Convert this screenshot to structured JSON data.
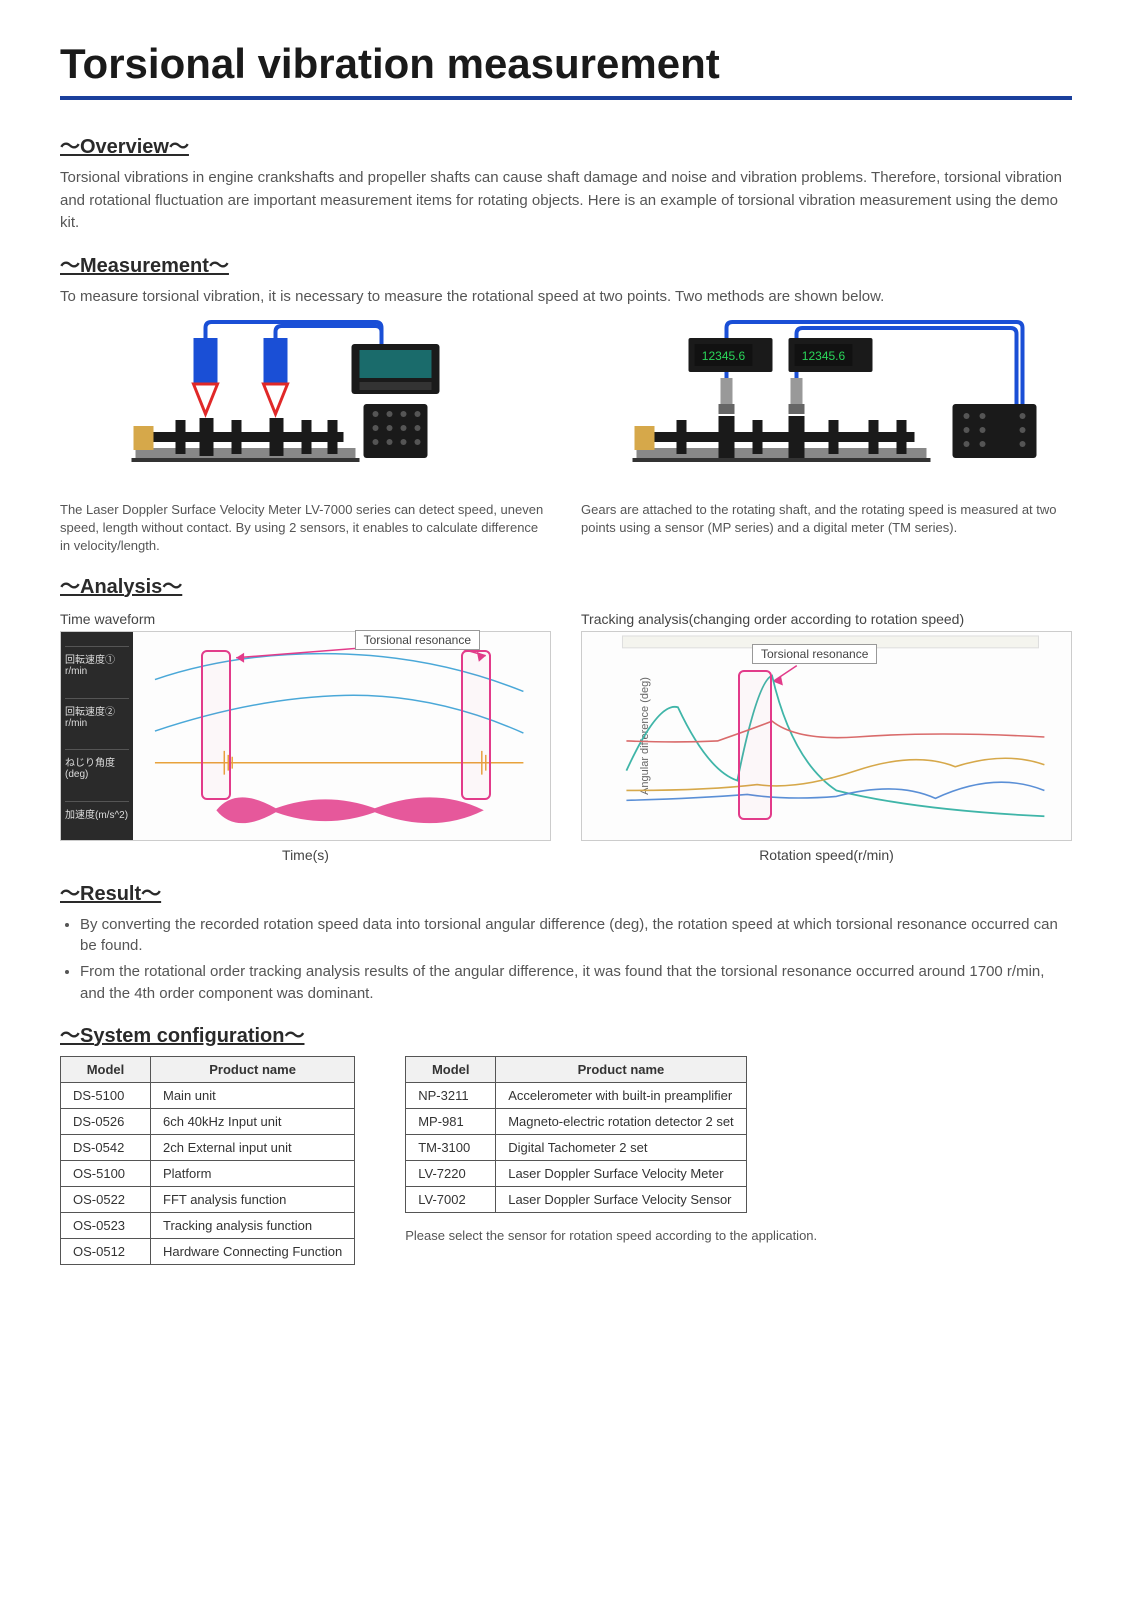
{
  "title": "Torsional vibration measurement",
  "sections": {
    "overview": {
      "heading": "～Overview～",
      "text": "Torsional vibrations in engine crankshafts and propeller shafts can cause shaft damage and noise and vibration problems. Therefore, torsional vibration and rotational fluctuation are important measurement items for rotating objects. Here is an example of torsional vibration measurement using the demo kit."
    },
    "measurement": {
      "heading": "～Measurement～",
      "text": "To measure torsional vibration, it is necessary to measure the rotational speed at two points. Two methods are shown below.",
      "method1_caption": "The Laser Doppler Surface Velocity Meter LV-7000 series can detect speed, uneven speed, length without contact. By using 2 sensors, it enables to calculate difference in velocity/length.",
      "method2_caption": "Gears are attached to the rotating shaft, and the rotating speed is measured at two points using a sensor (MP series) and a digital meter (TM series)."
    },
    "analysis": {
      "heading": "～Analysis～",
      "time_chart": {
        "label": "Time waveform",
        "callout": "Torsional resonance",
        "x_axis": "Time(s)",
        "sidepanel_labels": [
          "回転速度① r/min",
          "回転速度② r/min",
          "ねじり角度(deg)",
          "加速度(m/s^2)"
        ],
        "colors": {
          "line1": "#4aa8d8",
          "line2": "#4aa8d8",
          "torsion": "#e8a23c",
          "accel": "#e23b8a",
          "resonance_box": "#e23b8a"
        }
      },
      "tracking_chart": {
        "label": "Tracking analysis(changing order according to rotation speed)",
        "callout": "Torsional resonance",
        "x_axis": "Rotation speed(r/min)",
        "y_axis": "Angular difference (deg)",
        "series_colors": [
          "#3fb5a8",
          "#d96b6b",
          "#d6a84a",
          "#5a8fd6"
        ],
        "resonance_x_rpm": 1700,
        "x_range": [
          800,
          3000
        ]
      }
    },
    "result": {
      "heading": "～Result～",
      "bullets": [
        "By converting the recorded rotation speed data into torsional angular difference (deg), the rotation speed at which torsional resonance occurred can be found.",
        "From the rotational order tracking analysis results of the angular difference, it was found that the torsional resonance occurred around 1700 r/min, and the 4th order component was dominant."
      ]
    },
    "system": {
      "heading": "～System configuration～",
      "table1": {
        "headers": [
          "Model",
          "Product name"
        ],
        "rows": [
          [
            "DS-5100",
            "Main unit"
          ],
          [
            "DS-0526",
            "6ch 40kHz Input unit"
          ],
          [
            "DS-0542",
            "2ch External input unit"
          ],
          [
            "OS-5100",
            "Platform"
          ],
          [
            "OS-0522",
            "FFT analysis function"
          ],
          [
            "OS-0523",
            "Tracking analysis function"
          ],
          [
            "OS-0512",
            "Hardware Connecting Function"
          ]
        ]
      },
      "table2": {
        "headers": [
          "Model",
          "Product name"
        ],
        "rows": [
          [
            "NP-3211",
            "Accelerometer with built-in preamplifier"
          ],
          [
            "MP-981",
            "Magneto-electric rotation detector 2 set"
          ],
          [
            "TM-3100",
            "Digital Tachometer 2 set"
          ],
          [
            "LV-7220",
            "Laser Doppler Surface Velocity Meter"
          ],
          [
            "LV-7002",
            "Laser Doppler Surface Velocity Sensor"
          ]
        ]
      },
      "note": "Please select the sensor for rotation speed according to the application."
    }
  },
  "diagram": {
    "colors": {
      "cable": "#1a4fd6",
      "sensor_body": "#1a4fd6",
      "laser_triangle": "#e02828",
      "shaft": "#1a1a1a",
      "base": "#555",
      "coupling": "#d6a84a",
      "instrument_dark": "#1a1a1a",
      "instrument_screen": "#1a6b6b",
      "meter_display_bg": "#111",
      "meter_display_text": "#2bd65a",
      "meter_reading": "12345.6"
    }
  }
}
